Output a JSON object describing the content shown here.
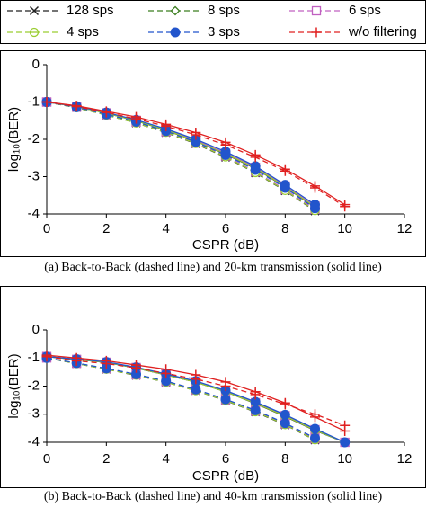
{
  "legend_corner": "top",
  "chart_data": [
    {
      "type": "line",
      "caption": "(a) Back-to-Back (dashed line) and 20-km transmission (solid line)",
      "xlabel": "CSPR (dB)",
      "ylabel": "log₁₀(BER)",
      "xlim": [
        0,
        12
      ],
      "ylim": [
        -4,
        0
      ],
      "xticks": [
        0,
        2,
        4,
        6,
        8,
        10,
        12
      ],
      "yticks": [
        0,
        -1,
        -2,
        -3,
        -4
      ],
      "x": [
        0,
        1,
        2,
        3,
        4,
        5,
        6,
        7,
        8,
        9,
        10
      ],
      "series": [
        {
          "name": "128 sps",
          "color": "#222222",
          "marker": "x",
          "values": [
            -1.0,
            -1.15,
            -1.35,
            -1.56,
            -1.82,
            -2.12,
            -2.48,
            -2.9,
            -3.38,
            -3.92,
            null
          ],
          "values_solid": [
            -1.0,
            -1.12,
            -1.3,
            -1.5,
            -1.76,
            -2.05,
            -2.4,
            -2.78,
            -3.28,
            -3.82,
            null
          ]
        },
        {
          "name": "8 sps",
          "color": "#3a7d1e",
          "marker": "diamond",
          "values": [
            -1.0,
            -1.15,
            -1.34,
            -1.55,
            -1.8,
            -2.1,
            -2.46,
            -2.88,
            -3.36,
            -3.9,
            null
          ],
          "values_solid": [
            -1.0,
            -1.12,
            -1.3,
            -1.5,
            -1.75,
            -2.04,
            -2.38,
            -2.76,
            -3.26,
            -3.8,
            null
          ]
        },
        {
          "name": "6 sps",
          "color": "#c060c0",
          "marker": "square",
          "values": [
            -1.0,
            -1.14,
            -1.34,
            -1.54,
            -1.8,
            -2.1,
            -2.45,
            -2.87,
            -3.35,
            -3.88,
            null
          ],
          "values_solid": [
            -1.0,
            -1.12,
            -1.29,
            -1.49,
            -1.74,
            -2.03,
            -2.37,
            -2.75,
            -3.25,
            -3.79,
            null
          ]
        },
        {
          "name": "4 sps",
          "color": "#9acd32",
          "marker": "theta",
          "values": [
            -1.0,
            -1.15,
            -1.35,
            -1.56,
            -1.81,
            -2.11,
            -2.47,
            -2.89,
            -3.37,
            -3.91,
            null
          ],
          "values_solid": [
            -1.0,
            -1.12,
            -1.3,
            -1.5,
            -1.75,
            -2.05,
            -2.39,
            -2.77,
            -3.27,
            -3.81,
            null
          ]
        },
        {
          "name": "3 sps",
          "color": "#2255cc",
          "marker": "dot",
          "values": [
            -1.0,
            -1.14,
            -1.33,
            -1.53,
            -1.78,
            -2.07,
            -2.42,
            -2.82,
            -3.3,
            -3.85,
            null
          ],
          "values_solid": [
            -1.0,
            -1.11,
            -1.28,
            -1.48,
            -1.72,
            -2.0,
            -2.33,
            -2.72,
            -3.22,
            -3.75,
            null
          ]
        },
        {
          "name": "w/o filtering",
          "color": "#e02020",
          "marker": "plus",
          "values": [
            -1.0,
            -1.12,
            -1.28,
            -1.45,
            -1.65,
            -1.88,
            -2.15,
            -2.48,
            -2.85,
            -3.3,
            -3.8
          ],
          "values_solid": [
            -1.0,
            -1.1,
            -1.25,
            -1.4,
            -1.6,
            -1.82,
            -2.08,
            -2.42,
            -2.8,
            -3.25,
            -3.75
          ]
        }
      ]
    },
    {
      "type": "line",
      "caption": "(b) Back-to-Back (dashed line) and 40-km transmission (solid line)",
      "xlabel": "CSPR (dB)",
      "ylabel": "log₁₀(BER)",
      "xlim": [
        0,
        12
      ],
      "ylim": [
        -4,
        0
      ],
      "xticks": [
        0,
        2,
        4,
        6,
        8,
        10,
        12
      ],
      "yticks": [
        0,
        -1,
        -2,
        -3,
        -4
      ],
      "x": [
        0,
        1,
        2,
        3,
        4,
        5,
        6,
        7,
        8,
        9,
        10
      ],
      "series": [
        {
          "name": "128 sps",
          "color": "#222222",
          "marker": "x",
          "values": [
            -1.0,
            -1.2,
            -1.4,
            -1.62,
            -1.86,
            -2.16,
            -2.52,
            -2.92,
            -3.38,
            -3.92,
            null
          ],
          "values_solid": [
            -0.95,
            -1.05,
            -1.16,
            -1.36,
            -1.6,
            -1.86,
            -2.2,
            -2.62,
            -3.08,
            -3.58,
            -4.0
          ]
        },
        {
          "name": "8 sps",
          "color": "#3a7d1e",
          "marker": "diamond",
          "values": [
            -1.0,
            -1.19,
            -1.39,
            -1.6,
            -1.85,
            -2.15,
            -2.5,
            -2.9,
            -3.36,
            -3.9,
            null
          ],
          "values_solid": [
            -0.95,
            -1.05,
            -1.15,
            -1.35,
            -1.6,
            -1.85,
            -2.2,
            -2.6,
            -3.06,
            -3.56,
            -4.0
          ]
        },
        {
          "name": "6 sps",
          "color": "#c060c0",
          "marker": "square",
          "values": [
            -1.0,
            -1.19,
            -1.38,
            -1.6,
            -1.84,
            -2.14,
            -2.49,
            -2.89,
            -3.35,
            -3.88,
            null
          ],
          "values_solid": [
            -0.95,
            -1.05,
            -1.15,
            -1.34,
            -1.59,
            -1.84,
            -2.19,
            -2.59,
            -3.05,
            -3.55,
            -4.0
          ]
        },
        {
          "name": "4 sps",
          "color": "#9acd32",
          "marker": "theta",
          "values": [
            -1.0,
            -1.2,
            -1.4,
            -1.61,
            -1.86,
            -2.16,
            -2.51,
            -2.91,
            -3.37,
            -3.91,
            null
          ],
          "values_solid": [
            -0.95,
            -1.05,
            -1.16,
            -1.35,
            -1.6,
            -1.86,
            -2.2,
            -2.61,
            -3.07,
            -3.57,
            -4.0
          ]
        },
        {
          "name": "3 sps",
          "color": "#2255cc",
          "marker": "dot",
          "values": [
            -1.0,
            -1.18,
            -1.37,
            -1.58,
            -1.82,
            -2.12,
            -2.47,
            -2.86,
            -3.32,
            -3.85,
            null
          ],
          "values_solid": [
            -0.95,
            -1.04,
            -1.14,
            -1.33,
            -1.57,
            -1.82,
            -2.16,
            -2.56,
            -3.02,
            -3.52,
            -4.0
          ]
        },
        {
          "name": "w/o filtering",
          "color": "#e02020",
          "marker": "plus",
          "values": [
            -0.95,
            -1.1,
            -1.2,
            -1.35,
            -1.55,
            -1.75,
            -2.0,
            -2.3,
            -2.65,
            -3.0,
            -3.4
          ],
          "values_solid": [
            -0.9,
            -1.0,
            -1.1,
            -1.25,
            -1.4,
            -1.6,
            -1.85,
            -2.2,
            -2.6,
            -3.1,
            -3.6
          ]
        }
      ]
    }
  ]
}
